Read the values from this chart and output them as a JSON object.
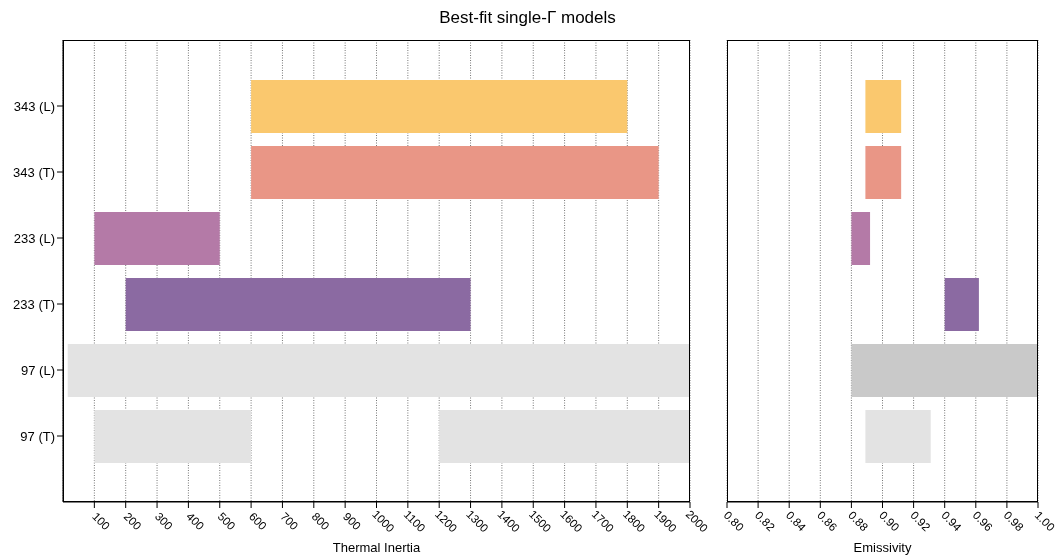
{
  "chart_data": [
    {
      "type": "bar",
      "orientation": "horizontal",
      "title": "Best-fit single-Γ models",
      "xlabel": "Thermal Inertia",
      "categories": [
        "343 (L)",
        "343 (T)",
        "233 (L)",
        "233 (T)",
        "97 (L)",
        "97 (T)"
      ],
      "series": [
        {
          "values": [
            1200,
            1300,
            400,
            1100,
            1985,
            500
          ],
          "base": [
            600,
            600,
            100,
            200,
            15,
            100
          ],
          "colors": [
            "#fac86e",
            "#e99686",
            "#b47aa7",
            "#8b6aa2",
            "#e3e3e3",
            "#e3e3e3"
          ]
        },
        {
          "values": [
            null,
            null,
            null,
            null,
            null,
            800
          ],
          "base": [
            null,
            null,
            null,
            null,
            null,
            1200
          ],
          "colors": [
            null,
            null,
            null,
            null,
            null,
            "#e3e3e3"
          ]
        }
      ],
      "xlim": [
        0,
        2000
      ],
      "xticks": [
        100,
        200,
        300,
        400,
        500,
        600,
        700,
        800,
        900,
        1000,
        1100,
        1200,
        1300,
        1400,
        1500,
        1600,
        1700,
        1800,
        1900,
        2000
      ],
      "grid": "x"
    },
    {
      "type": "bar",
      "orientation": "horizontal",
      "xlabel": "Emissivity",
      "categories": [
        null,
        null,
        null,
        null,
        null,
        null
      ],
      "series": [
        {
          "values": [
            0.023,
            0.023,
            0.012,
            0.022,
            0.12,
            0.042
          ],
          "base": [
            0.889,
            0.889,
            0.88,
            0.94,
            0.88,
            0.889
          ],
          "colors": [
            "#fac86e",
            "#e99686",
            "#b47aa7",
            "#8b6aa2",
            "#c9c9c9",
            "#e3e3e3"
          ]
        }
      ],
      "xlim": [
        0.8,
        1.0
      ],
      "xticks": [
        {
          "value": 0.8,
          "label": "0.80"
        },
        {
          "value": 0.82,
          "label": "0.82"
        },
        {
          "value": 0.84,
          "label": "0.84"
        },
        {
          "value": 0.86,
          "label": "0.86"
        },
        {
          "value": 0.88,
          "label": "0.88"
        },
        {
          "value": 0.9,
          "label": "0.90"
        },
        {
          "value": 0.92,
          "label": "0.92"
        },
        {
          "value": 0.94,
          "label": "0.94"
        },
        {
          "value": 0.96,
          "label": "0.96"
        },
        {
          "value": 0.98,
          "label": "0.98"
        },
        {
          "value": 1.0,
          "label": "1.00"
        }
      ],
      "grid": "x",
      "tick_labels": "x"
    }
  ]
}
